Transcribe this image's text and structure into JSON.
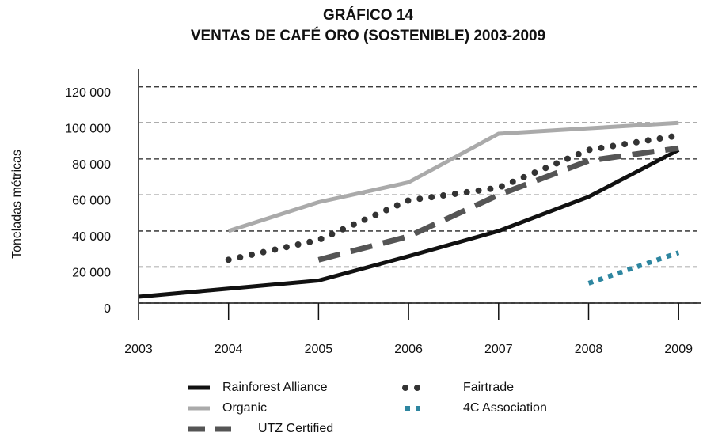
{
  "chart_data": {
    "type": "line",
    "title": "GRÁFICO 14",
    "subtitle": "VENTAS DE CAFÉ ORO (SOSTENIBLE) 2003-2009",
    "y_label": "Toneladas métricas",
    "categories": [
      "2003",
      "2004",
      "2005",
      "2006",
      "2007",
      "2008",
      "2009"
    ],
    "series": [
      {
        "name": "Rainforest Alliance",
        "color": "#111111",
        "style": "solid",
        "values": [
          3500,
          8000,
          12500,
          26000,
          40000,
          59000,
          85000
        ]
      },
      {
        "name": "Organic",
        "color": "#aaaaaa",
        "style": "solid",
        "values": [
          null,
          40000,
          56000,
          67000,
          94000,
          97000,
          100000
        ]
      },
      {
        "name": "UTZ Certified",
        "color": "#555555",
        "style": "dashed",
        "values": [
          null,
          null,
          24000,
          37000,
          60000,
          79000,
          86000
        ]
      },
      {
        "name": "Fairtrade",
        "color": "#333333",
        "style": "dotted",
        "values": [
          null,
          24000,
          35000,
          57000,
          64000,
          85000,
          93000
        ]
      },
      {
        "name": "4C Association",
        "color": "#2e86a0",
        "style": "square-dotted",
        "values": [
          null,
          null,
          null,
          null,
          null,
          11000,
          28000
        ]
      }
    ],
    "ylim": [
      0,
      130000
    ],
    "yticks": [
      0,
      {
        "value": 20000,
        "label": "20 000"
      },
      {
        "value": 40000,
        "label": "40 000"
      },
      {
        "value": 60000,
        "label": "60 000"
      },
      {
        "value": 80000,
        "label": "80 000"
      },
      {
        "value": 100000,
        "label": "100 000"
      },
      {
        "value": 120000,
        "label": "120 000"
      }
    ],
    "grid": true
  }
}
